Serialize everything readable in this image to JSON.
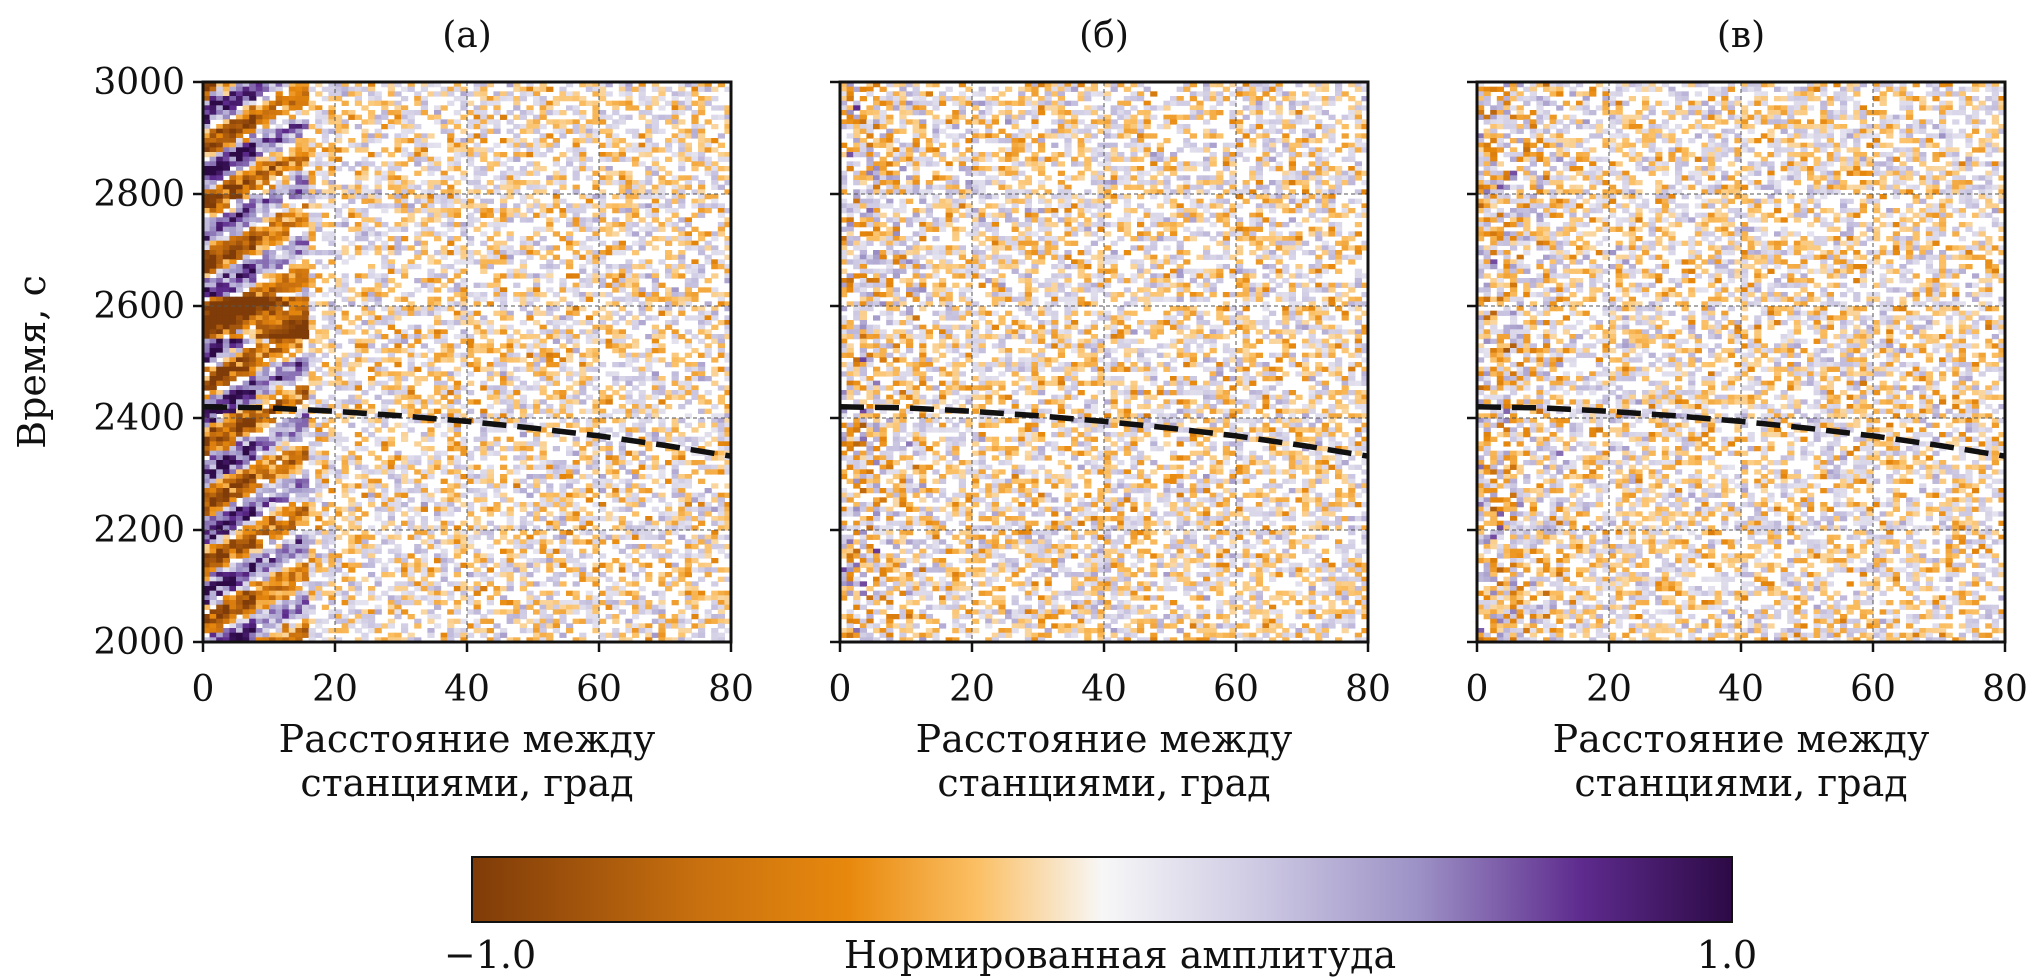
{
  "chart_data": {
    "type": "heatmap",
    "ylabel": "Время, с",
    "xlabel_lines": [
      "Расстояние между",
      "станциями, град"
    ],
    "xlim": [
      0,
      80
    ],
    "ylim": [
      2000,
      3000
    ],
    "xticks": [
      0,
      20,
      40,
      60,
      80
    ],
    "yticks": [
      2000,
      2200,
      2400,
      2600,
      2800,
      3000
    ],
    "grid": true,
    "colormap": "PuOr",
    "colors": {
      "negative": "#8b3e12",
      "mid_negative": "#e8890d",
      "zero": "#f7f7f7",
      "mid_positive": "#9d92c6",
      "positive": "#2d0a46",
      "reference_curve": "#111111"
    },
    "panels": [
      {
        "title": "(а)",
        "coherence": "strong"
      },
      {
        "title": "(б)",
        "coherence": "weak"
      },
      {
        "title": "(в)",
        "coherence": "weak"
      }
    ],
    "reference_curve": {
      "style": "dashed",
      "x": [
        0,
        10,
        20,
        30,
        40,
        50,
        60,
        70,
        80
      ],
      "y": [
        2420,
        2418,
        2412,
        2404,
        2394,
        2382,
        2368,
        2351,
        2332
      ]
    },
    "colorbar": {
      "label": "Нормированная амплитуда",
      "min": -1.0,
      "max": 1.0,
      "min_label": "−1.0",
      "max_label": "1.0"
    }
  }
}
